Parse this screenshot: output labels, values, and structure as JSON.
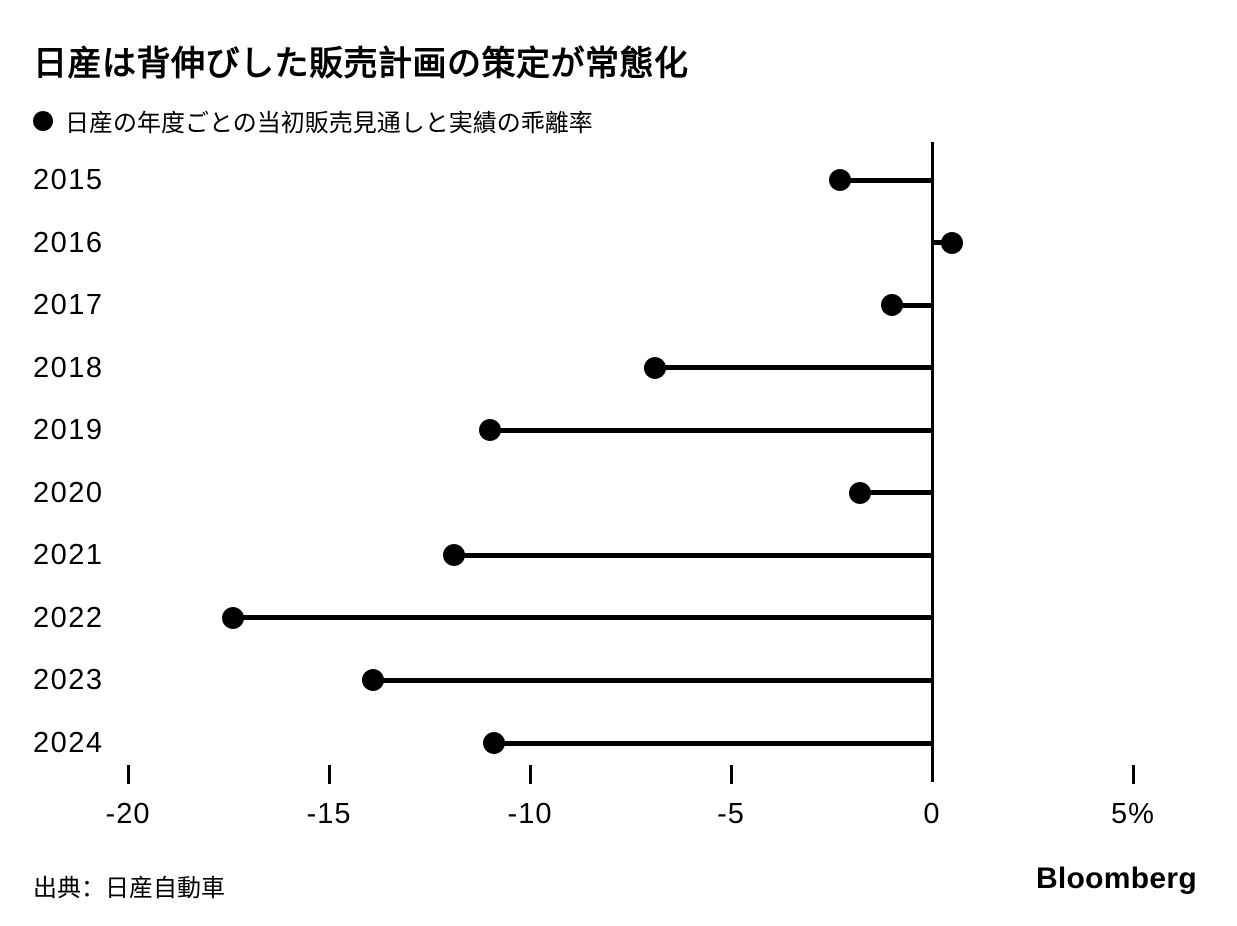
{
  "header": {
    "title": "日産は背伸びした販売計画の策定が常態化",
    "legend": {
      "marker": "filled-circle",
      "label": "日産の年度ごとの当初販売見通しと実績の乖離率"
    }
  },
  "footer": {
    "source": "出典：日産自動車",
    "brand": "Bloomberg"
  },
  "colors": {
    "foreground": "#000000",
    "background": "#ffffff"
  },
  "chart_data": {
    "type": "bar",
    "subtype": "horizontal-lollipop",
    "title": "日産は背伸びした販売計画の策定が常態化",
    "legend_label": "日産の年度ごとの当初販売見通しと実績の乖離率",
    "categories": [
      "2015",
      "2016",
      "2017",
      "2018",
      "2019",
      "2020",
      "2021",
      "2022",
      "2023",
      "2024"
    ],
    "values": [
      -2.3,
      0.5,
      -1.0,
      -6.9,
      -11.0,
      -1.8,
      -11.9,
      -17.4,
      -13.9,
      -10.9
    ],
    "unit": "%",
    "xlabel": "",
    "ylabel": "",
    "xlim": [
      -22,
      7.5
    ],
    "xticks": [
      -20,
      -15,
      -10,
      -5,
      0,
      5
    ],
    "xtick_labels": [
      "-20",
      "-15",
      "-10",
      "-5",
      "0",
      "5%"
    ],
    "baseline": 0,
    "grid": false,
    "legend_position": "top-left",
    "marker_color": "#000000",
    "source": "出典：日産自動車",
    "brand": "Bloomberg"
  }
}
